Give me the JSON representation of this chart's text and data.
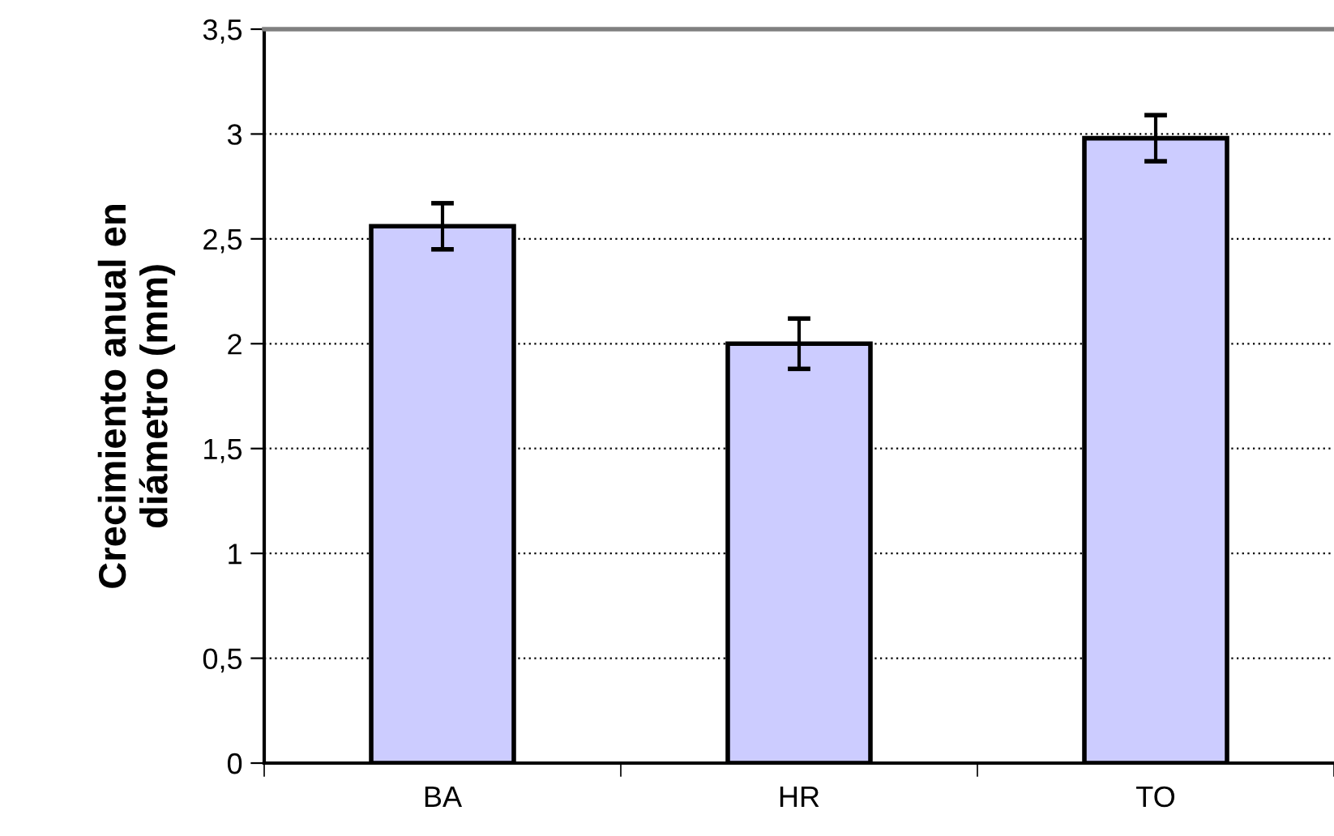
{
  "chart_data": {
    "type": "bar",
    "ylabel": "Crecimiento anual en\ndiámetro (mm)",
    "categories": [
      "BA",
      "HR",
      "TO"
    ],
    "values": [
      2.56,
      2.0,
      2.98
    ],
    "errors": [
      0.11,
      0.12,
      0.11
    ],
    "color": "#ccccff",
    "ylim": [
      0,
      3.5
    ],
    "yticks": [
      0,
      {
        "value": 0.5,
        "label": "0,5"
      },
      1,
      {
        "value": 1.5,
        "label": "1,5"
      },
      2,
      {
        "value": 2.5,
        "label": "2,5"
      },
      3,
      {
        "value": 3.5,
        "label": "3,5"
      }
    ],
    "grid": "y",
    "legend": false
  }
}
